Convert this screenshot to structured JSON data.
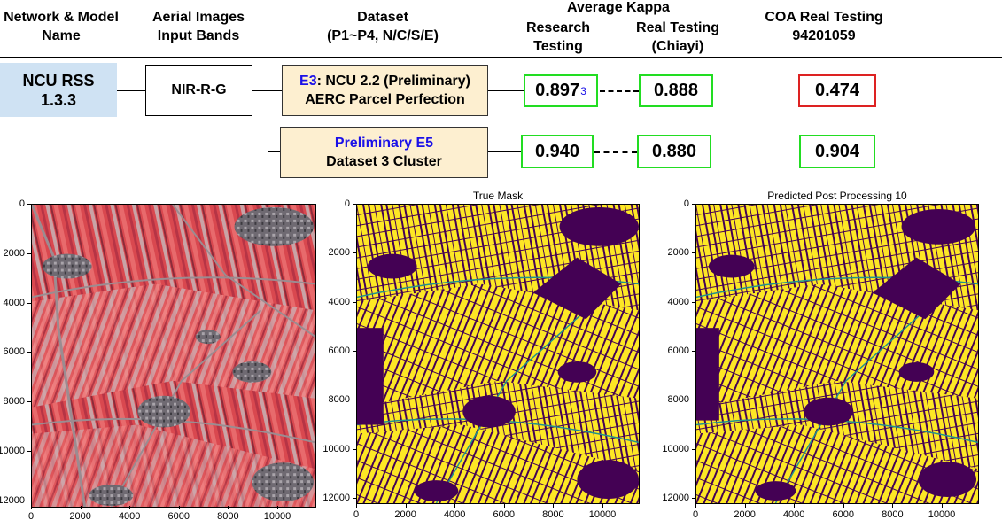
{
  "headers": {
    "network_model": [
      "Network & Model",
      "Name"
    ],
    "aerial_bands": [
      "Aerial Images",
      "Input Bands"
    ],
    "dataset": [
      "Dataset",
      "(P1~P4, N/C/S/E)"
    ],
    "average_kappa": "Average Kappa",
    "research_testing": [
      "Research",
      "Testing"
    ],
    "real_testing": [
      "Real Testing",
      "(Chiayi)"
    ],
    "coa_real_testing": [
      "COA Real Testing",
      "94201059"
    ]
  },
  "model": {
    "name_line1": "NCU RSS",
    "name_line2": "1.3.3"
  },
  "input_bands": "NIR-R-G",
  "datasets": [
    {
      "prefix": "E3",
      "line1_rest": ": NCU 2.2 (Preliminary)",
      "line2": "AERC Parcel Perfection",
      "research": "0.897",
      "research_sup": "3",
      "real": "0.888",
      "coa": "0.474"
    },
    {
      "line1": "Preliminary E5",
      "line2": "Dataset 3 Cluster",
      "research": "0.940",
      "real": "0.880",
      "coa": "0.904"
    }
  ],
  "colors": {
    "model_box": "#cfe2f3",
    "dataset_box": "#fdefd0",
    "dataset_border": "#333333",
    "good": "#22dd22",
    "bad": "#dd2222",
    "highlight": "#1a10e8",
    "mask_bg": "#440154",
    "mask_fg": "#fde725",
    "edge": "#21918c"
  },
  "plots": [
    {
      "title": "",
      "x_ticks": [
        "0",
        "2000",
        "4000",
        "6000",
        "8000",
        "10000"
      ],
      "y_ticks": [
        "0",
        "2000",
        "4000",
        "6000",
        "8000",
        "10000",
        "12000"
      ]
    },
    {
      "title": "True Mask",
      "x_ticks": [
        "0",
        "2000",
        "4000",
        "6000",
        "8000",
        "10000"
      ],
      "y_ticks": [
        "0",
        "2000",
        "4000",
        "6000",
        "8000",
        "10000",
        "12000"
      ]
    },
    {
      "title": "Predicted Post Processing 10",
      "x_ticks": [
        "0",
        "2000",
        "4000",
        "6000",
        "8000",
        "10000"
      ],
      "y_ticks": [
        "0",
        "2000",
        "4000",
        "6000",
        "8000",
        "10000",
        "12000"
      ]
    }
  ]
}
